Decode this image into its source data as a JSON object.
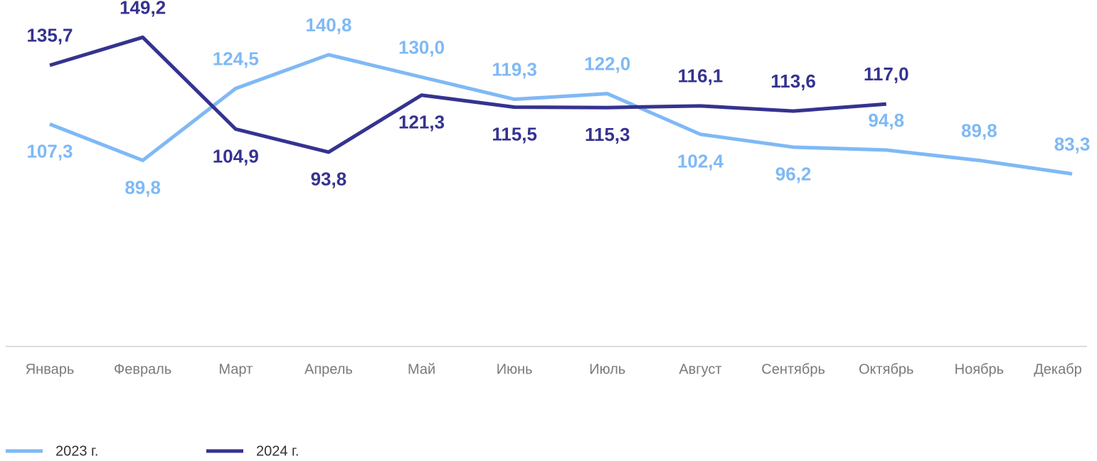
{
  "chart_data": {
    "type": "line",
    "categories": [
      "Январь",
      "Февраль",
      "Март",
      "Апрель",
      "Май",
      "Июнь",
      "Июль",
      "Август",
      "Сентябрь",
      "Октябрь",
      "Ноябрь",
      "Декабр"
    ],
    "ylim": [
      0,
      160
    ],
    "series": [
      {
        "name": "2023 г.",
        "color": "#7fb9f5",
        "values": [
          107.3,
          89.8,
          124.5,
          140.8,
          130.0,
          119.3,
          122.0,
          102.4,
          96.2,
          94.8,
          89.8,
          83.3
        ],
        "value_labels": [
          "107,3",
          "89,8",
          "124,5",
          "140,8",
          "130,0",
          "119,3",
          "122,0",
          "102,4",
          "96,2",
          "94,8",
          "89,8",
          "83,3"
        ]
      },
      {
        "name": "2024 г.",
        "color": "#35338f",
        "values": [
          135.7,
          149.2,
          104.9,
          93.8,
          121.3,
          115.5,
          115.3,
          116.1,
          113.6,
          117.0,
          null,
          null
        ],
        "value_labels": [
          "135,7",
          "149,2",
          "104,9",
          "93,8",
          "121,3",
          "115,5",
          "115,3",
          "116,1",
          "113,6",
          "117,0",
          null,
          null
        ]
      }
    ]
  }
}
